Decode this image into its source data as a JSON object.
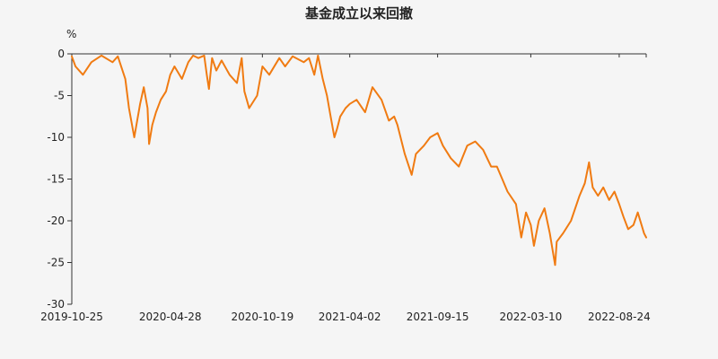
{
  "chart_data": {
    "type": "line",
    "title": "基金成立以来回撤",
    "y_unit_label": "%",
    "ylim": [
      -30,
      0
    ],
    "y_ticks": [
      "0",
      "-5",
      "-10",
      "-15",
      "-20",
      "-25",
      "-30"
    ],
    "y_tick_values": [
      0,
      -5,
      -10,
      -15,
      -20,
      -25,
      -30
    ],
    "x_range": [
      "2019-10-25",
      "2022-10-14"
    ],
    "x_tick_labels": [
      "2019-10-25",
      "2020-04-28",
      "2020-10-19",
      "2021-04-02",
      "2021-09-15",
      "2022-03-10",
      "2022-08-24"
    ],
    "grid": false,
    "legend": "none",
    "line_color": "#f07b12",
    "series": [
      {
        "x": [
          "2019-10-25",
          "2019-11-01",
          "2019-11-15",
          "2019-12-01",
          "2019-12-20",
          "2020-01-10",
          "2020-01-20",
          "2020-02-03",
          "2020-02-10",
          "2020-02-20",
          "2020-03-02",
          "2020-03-09",
          "2020-03-16",
          "2020-03-19",
          "2020-03-25",
          "2020-04-01",
          "2020-04-10",
          "2020-04-20",
          "2020-04-28",
          "2020-05-06",
          "2020-05-20",
          "2020-06-01",
          "2020-06-10",
          "2020-06-20",
          "2020-07-01",
          "2020-07-06",
          "2020-07-10",
          "2020-07-16",
          "2020-07-24",
          "2020-08-03",
          "2020-08-18",
          "2020-09-01",
          "2020-09-10",
          "2020-09-15",
          "2020-09-24",
          "2020-10-09",
          "2020-10-19",
          "2020-11-01",
          "2020-11-20",
          "2020-12-01",
          "2020-12-15",
          "2021-01-05",
          "2021-01-15",
          "2021-01-25",
          "2021-02-01",
          "2021-02-10",
          "2021-02-18",
          "2021-02-25",
          "2021-03-04",
          "2021-03-09",
          "2021-03-15",
          "2021-03-25",
          "2021-04-02",
          "2021-04-15",
          "2021-05-01",
          "2021-05-15",
          "2021-06-01",
          "2021-06-15",
          "2021-06-25",
          "2021-07-01",
          "2021-07-15",
          "2021-07-28",
          "2021-08-05",
          "2021-08-20",
          "2021-09-01",
          "2021-09-15",
          "2021-09-25",
          "2021-10-10",
          "2021-10-25",
          "2021-11-10",
          "2021-11-25",
          "2021-12-10",
          "2021-12-25",
          "2022-01-05",
          "2022-01-15",
          "2022-01-25",
          "2022-02-10",
          "2022-02-20",
          "2022-03-01",
          "2022-03-10",
          "2022-03-16",
          "2022-03-25",
          "2022-04-05",
          "2022-04-15",
          "2022-04-25",
          "2022-04-28",
          "2022-05-10",
          "2022-05-25",
          "2022-06-10",
          "2022-06-20",
          "2022-06-28",
          "2022-07-05",
          "2022-07-15",
          "2022-07-25",
          "2022-08-05",
          "2022-08-15",
          "2022-08-24",
          "2022-09-01",
          "2022-09-10",
          "2022-09-20",
          "2022-09-28",
          "2022-10-10",
          "2022-10-14"
        ],
        "y": [
          -0.3,
          -1.5,
          -2.5,
          -1.0,
          -0.2,
          -1.0,
          -0.3,
          -3.0,
          -6.5,
          -10.0,
          -6.0,
          -4.0,
          -6.5,
          -10.8,
          -8.5,
          -7.0,
          -5.5,
          -4.5,
          -2.5,
          -1.5,
          -3.0,
          -1.0,
          -0.2,
          -0.5,
          -0.2,
          -2.5,
          -4.2,
          -0.5,
          -2.0,
          -0.8,
          -2.5,
          -3.5,
          -0.5,
          -4.5,
          -6.5,
          -5.0,
          -1.5,
          -2.5,
          -0.5,
          -1.5,
          -0.3,
          -1.0,
          -0.5,
          -2.5,
          -0.2,
          -3.0,
          -5.0,
          -7.5,
          -10.0,
          -9.0,
          -7.5,
          -6.5,
          -6.0,
          -5.5,
          -7.0,
          -4.0,
          -5.5,
          -8.0,
          -7.5,
          -8.5,
          -12.0,
          -14.5,
          -12.0,
          -11.0,
          -10.0,
          -9.5,
          -11.0,
          -12.5,
          -13.5,
          -11.0,
          -10.5,
          -11.5,
          -13.5,
          -13.5,
          -15.0,
          -16.5,
          -18.0,
          -22.0,
          -19.0,
          -20.5,
          -23.0,
          -20.0,
          -18.5,
          -21.5,
          -25.3,
          -22.5,
          -21.5,
          -20.0,
          -17.0,
          -15.5,
          -13.0,
          -16.0,
          -17.0,
          -16.0,
          -17.5,
          -16.5,
          -18.0,
          -19.5,
          -21.0,
          -20.5,
          -19.0,
          -21.5,
          -22.0
        ]
      }
    ]
  }
}
